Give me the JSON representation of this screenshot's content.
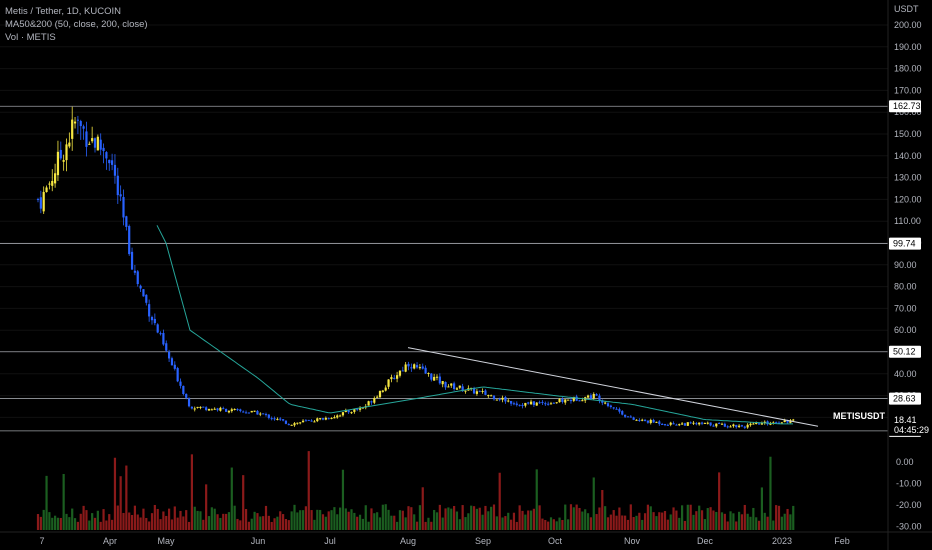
{
  "legend": {
    "title": "Metis / Tether, 1D, KUCOIN",
    "indicator": "MA50&200 (50, close, 200, close)",
    "volume": "Vol · METIS"
  },
  "price_axis": {
    "unit": "USDT",
    "ticks": [
      "200.00",
      "190.00",
      "180.00",
      "170.00",
      "160.00",
      "150.00",
      "140.00",
      "130.00",
      "120.00",
      "110.00",
      "100.00",
      "90.00",
      "80.00",
      "70.00",
      "60.00",
      "50.00",
      "40.00",
      "30.00",
      "20.00"
    ],
    "tick_values": [
      200,
      190,
      180,
      170,
      160,
      150,
      140,
      130,
      120,
      110,
      100,
      90,
      80,
      70,
      60,
      50,
      40,
      30,
      20
    ]
  },
  "volume_axis": {
    "ticks": [
      "0.00",
      "-10.00",
      "-20.00",
      "-30.00"
    ],
    "tick_values": [
      0,
      -10,
      -20,
      -30
    ]
  },
  "time_axis": {
    "labels": [
      "7",
      "Apr",
      "May",
      "Jun",
      "Jul",
      "Aug",
      "Sep",
      "Oct",
      "Nov",
      "Dec",
      "2023",
      "Feb"
    ]
  },
  "price_tags": [
    {
      "label": "162.73",
      "value": 162.73,
      "color": "#ffffff",
      "text_color": "#000000"
    },
    {
      "label": "99.74",
      "value": 99.74,
      "color": "#ffffff",
      "text_color": "#000000"
    },
    {
      "label": "50.12",
      "value": 50.12,
      "color": "#ffffff",
      "text_color": "#000000"
    },
    {
      "label": "28.63",
      "value": 28.63,
      "color": "#ffffff",
      "text_color": "#000000"
    },
    {
      "label": "13.83",
      "value": 13.83,
      "color": "#ffffff",
      "text_color": "#000000"
    }
  ],
  "current": {
    "symbol": "METISUSDT",
    "price": "18.41",
    "countdown": "04:45:29",
    "color": "#26a69a"
  },
  "colors": {
    "up": "#f5e642",
    "down": "#2962ff",
    "ma": "#26a69a",
    "hline": "#d1d4dc",
    "trend": "#d1d4dc",
    "vol_up": "#1b5e20",
    "vol_down": "#8b1a1a"
  },
  "chart_data": {
    "type": "candlestick",
    "title": "Metis / Tether, 1D, KUCOIN",
    "ylabel": "USDT",
    "ylim": [
      10,
      205
    ],
    "x_labels": [
      "7",
      "Apr",
      "May",
      "Jun",
      "Jul",
      "Aug",
      "Sep",
      "Oct",
      "Nov",
      "Dec",
      "2023",
      "Feb"
    ],
    "horizontal_levels": [
      162.73,
      99.74,
      50.12,
      28.63,
      13.83
    ],
    "trendline": {
      "from": {
        "label": "Aug",
        "value": 52
      },
      "to": {
        "label": "2023",
        "value": 15
      }
    },
    "price_anchors": [
      {
        "label": "7",
        "close": 120
      },
      {
        "label": "mid-Mar",
        "close": 155
      },
      {
        "label": "Apr",
        "close": 140
      },
      {
        "label": "mid-Apr",
        "close": 85
      },
      {
        "label": "May",
        "close": 50
      },
      {
        "label": "mid-May",
        "close": 25
      },
      {
        "label": "Jun",
        "close": 22
      },
      {
        "label": "mid-Jun",
        "close": 17
      },
      {
        "label": "Jul",
        "close": 20
      },
      {
        "label": "mid-Jul",
        "close": 25
      },
      {
        "label": "Aug",
        "close": 45
      },
      {
        "label": "mid-Aug",
        "close": 35
      },
      {
        "label": "Sep",
        "close": 31
      },
      {
        "label": "mid-Sep",
        "close": 26
      },
      {
        "label": "Oct",
        "close": 27
      },
      {
        "label": "mid-Oct",
        "close": 30
      },
      {
        "label": "Nov",
        "close": 19
      },
      {
        "label": "mid-Nov",
        "close": 17
      },
      {
        "label": "Dec",
        "close": 17
      },
      {
        "label": "mid-Dec",
        "close": 16
      },
      {
        "label": "2023",
        "close": 18.41
      }
    ],
    "ma_anchors": [
      {
        "label": "mid-Apr",
        "value": 128
      },
      {
        "label": "May",
        "value": 100
      },
      {
        "label": "mid-May",
        "value": 60
      },
      {
        "label": "Jun",
        "value": 38
      },
      {
        "label": "mid-Jun",
        "value": 26
      },
      {
        "label": "Jul",
        "value": 22
      },
      {
        "label": "Aug",
        "value": 28
      },
      {
        "label": "Sep",
        "value": 34
      },
      {
        "label": "Oct",
        "value": 30
      },
      {
        "label": "Nov",
        "value": 26
      },
      {
        "label": "Dec",
        "value": 19
      },
      {
        "label": "2023",
        "value": 17
      }
    ]
  }
}
